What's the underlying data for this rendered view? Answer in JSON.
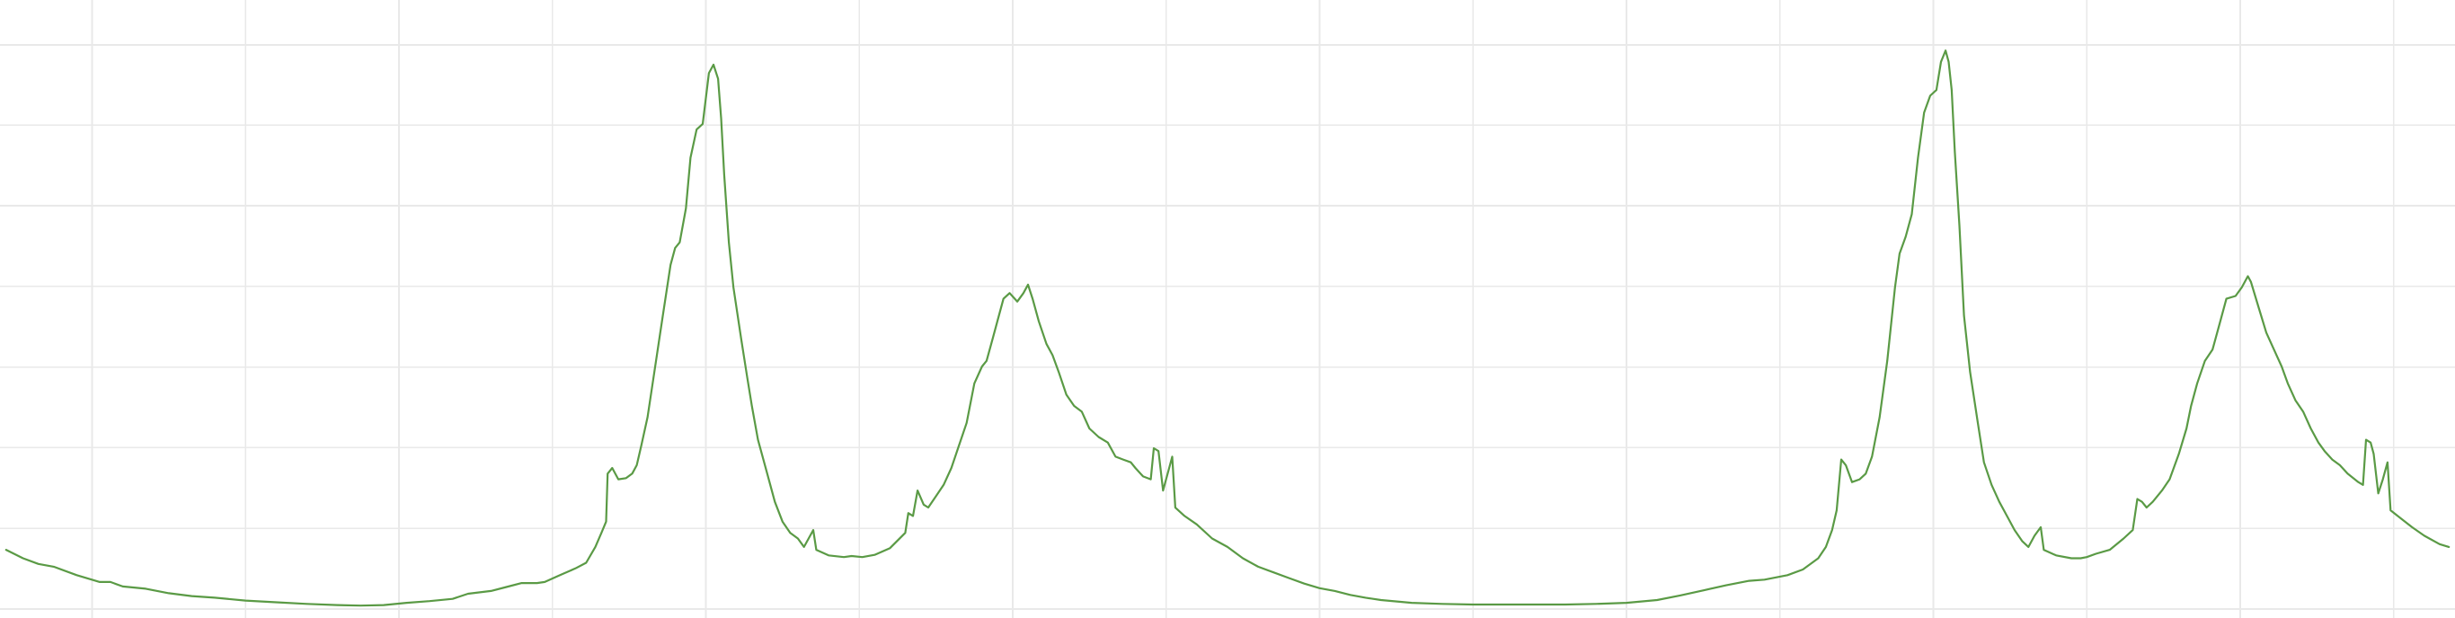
{
  "chart_data": {
    "type": "line",
    "title": "",
    "xlabel": "",
    "ylabel": "",
    "grid": true,
    "legend": "none",
    "xlim": [
      0,
      1600
    ],
    "ylim": [
      0,
      100
    ],
    "x_gridlines": [
      60,
      160,
      260,
      360,
      460,
      560,
      660,
      760,
      860,
      960,
      1060,
      1160,
      1260,
      1360,
      1460,
      1560
    ],
    "y_gridlines": [
      0,
      14.3,
      28.6,
      42.9,
      57.2,
      71.5,
      85.8,
      100
    ],
    "series": [
      {
        "color": "#5a9a45",
        "points": [
          [
            4,
            10.5
          ],
          [
            15,
            9
          ],
          [
            25,
            8
          ],
          [
            35,
            7.5
          ],
          [
            50,
            6
          ],
          [
            65,
            4.8
          ],
          [
            72,
            4.8
          ],
          [
            80,
            4
          ],
          [
            95,
            3.6
          ],
          [
            110,
            2.8
          ],
          [
            125,
            2.3
          ],
          [
            140,
            2
          ],
          [
            160,
            1.5
          ],
          [
            180,
            1.2
          ],
          [
            200,
            0.9
          ],
          [
            220,
            0.7
          ],
          [
            235,
            0.6
          ],
          [
            250,
            0.7
          ],
          [
            265,
            1.1
          ],
          [
            280,
            1.4
          ],
          [
            295,
            1.8
          ],
          [
            305,
            2.7
          ],
          [
            320,
            3.2
          ],
          [
            330,
            3.9
          ],
          [
            340,
            4.6
          ],
          [
            350,
            4.6
          ],
          [
            355,
            4.8
          ],
          [
            365,
            6
          ],
          [
            375,
            7.2
          ],
          [
            382,
            8.2
          ],
          [
            388,
            11
          ],
          [
            392,
            13.5
          ],
          [
            395,
            15.5
          ],
          [
            396,
            24
          ],
          [
            399,
            25
          ],
          [
            403,
            23
          ],
          [
            408,
            23.2
          ],
          [
            412,
            24
          ],
          [
            415,
            25.5
          ],
          [
            418,
            29
          ],
          [
            422,
            34
          ],
          [
            427,
            43
          ],
          [
            432,
            52
          ],
          [
            437,
            61
          ],
          [
            440,
            64
          ],
          [
            443,
            65
          ],
          [
            447,
            71
          ],
          [
            450,
            80
          ],
          [
            454,
            85
          ],
          [
            458,
            86
          ],
          [
            462,
            95
          ],
          [
            465,
            96.5
          ],
          [
            468,
            94
          ],
          [
            470,
            87
          ],
          [
            472,
            77
          ],
          [
            475,
            65
          ],
          [
            478,
            57
          ],
          [
            483,
            48
          ],
          [
            487,
            41
          ],
          [
            490,
            36
          ],
          [
            494,
            30
          ],
          [
            500,
            24
          ],
          [
            505,
            19
          ],
          [
            510,
            15.5
          ],
          [
            515,
            13.5
          ],
          [
            520,
            12.5
          ],
          [
            524,
            11
          ],
          [
            530,
            14
          ],
          [
            532,
            10.5
          ],
          [
            540,
            9.5
          ],
          [
            550,
            9.2
          ],
          [
            555,
            9.4
          ],
          [
            562,
            9.2
          ],
          [
            570,
            9.6
          ],
          [
            580,
            10.8
          ],
          [
            590,
            13.5
          ],
          [
            592,
            17
          ],
          [
            595,
            16.5
          ],
          [
            598,
            21
          ],
          [
            602,
            18.5
          ],
          [
            605,
            18
          ],
          [
            610,
            20
          ],
          [
            615,
            22
          ],
          [
            620,
            25
          ],
          [
            625,
            29
          ],
          [
            630,
            33
          ],
          [
            635,
            40
          ],
          [
            640,
            43
          ],
          [
            643,
            44
          ],
          [
            647,
            48
          ],
          [
            650,
            51
          ],
          [
            654,
            55
          ],
          [
            658,
            56
          ],
          [
            663,
            54.5
          ],
          [
            667,
            56
          ],
          [
            670,
            57.5
          ],
          [
            673,
            55
          ],
          [
            677,
            51
          ],
          [
            682,
            47
          ],
          [
            686,
            45
          ],
          [
            690,
            42
          ],
          [
            695,
            38
          ],
          [
            700,
            36
          ],
          [
            705,
            35
          ],
          [
            710,
            32
          ],
          [
            716,
            30.5
          ],
          [
            722,
            29.5
          ],
          [
            727,
            27
          ],
          [
            732,
            26.5
          ],
          [
            737,
            26
          ],
          [
            740,
            25
          ],
          [
            745,
            23.5
          ],
          [
            750,
            23
          ],
          [
            752,
            28.5
          ],
          [
            755,
            28
          ],
          [
            758,
            21
          ],
          [
            762,
            25
          ],
          [
            764,
            27
          ],
          [
            766,
            18
          ],
          [
            772,
            16.5
          ],
          [
            780,
            15
          ],
          [
            790,
            12.5
          ],
          [
            800,
            11
          ],
          [
            810,
            9
          ],
          [
            820,
            7.5
          ],
          [
            830,
            6.5
          ],
          [
            840,
            5.5
          ],
          [
            850,
            4.5
          ],
          [
            860,
            3.7
          ],
          [
            870,
            3.2
          ],
          [
            880,
            2.5
          ],
          [
            890,
            2
          ],
          [
            900,
            1.6
          ],
          [
            920,
            1.1
          ],
          [
            940,
            0.9
          ],
          [
            960,
            0.8
          ],
          [
            980,
            0.8
          ],
          [
            1000,
            0.8
          ],
          [
            1020,
            0.8
          ],
          [
            1040,
            0.9
          ],
          [
            1060,
            1.1
          ],
          [
            1080,
            1.6
          ],
          [
            1095,
            2.4
          ],
          [
            1110,
            3.3
          ],
          [
            1125,
            4.2
          ],
          [
            1140,
            5
          ],
          [
            1150,
            5.2
          ],
          [
            1165,
            6
          ],
          [
            1175,
            7
          ],
          [
            1185,
            9
          ],
          [
            1190,
            11
          ],
          [
            1194,
            14
          ],
          [
            1197,
            17.5
          ],
          [
            1200,
            26.5
          ],
          [
            1203,
            25.5
          ],
          [
            1207,
            22.5
          ],
          [
            1212,
            23
          ],
          [
            1216,
            24
          ],
          [
            1220,
            27
          ],
          [
            1225,
            34
          ],
          [
            1230,
            44
          ],
          [
            1235,
            57
          ],
          [
            1238,
            63
          ],
          [
            1242,
            66
          ],
          [
            1246,
            70
          ],
          [
            1250,
            80
          ],
          [
            1254,
            88
          ],
          [
            1258,
            91
          ],
          [
            1262,
            92
          ],
          [
            1265,
            97
          ],
          [
            1268,
            99
          ],
          [
            1270,
            97
          ],
          [
            1272,
            92
          ],
          [
            1274,
            81
          ],
          [
            1277,
            68
          ],
          [
            1280,
            52
          ],
          [
            1284,
            42
          ],
          [
            1289,
            33
          ],
          [
            1293,
            26
          ],
          [
            1298,
            22
          ],
          [
            1303,
            19
          ],
          [
            1308,
            16.5
          ],
          [
            1313,
            14
          ],
          [
            1318,
            12
          ],
          [
            1322,
            11
          ],
          [
            1326,
            13
          ],
          [
            1330,
            14.5
          ],
          [
            1332,
            10.5
          ],
          [
            1340,
            9.5
          ],
          [
            1350,
            9
          ],
          [
            1356,
            9
          ],
          [
            1360,
            9.2
          ],
          [
            1366,
            9.8
          ],
          [
            1375,
            10.5
          ],
          [
            1384,
            12.5
          ],
          [
            1390,
            14
          ],
          [
            1393,
            19.5
          ],
          [
            1396,
            19
          ],
          [
            1399,
            18
          ],
          [
            1403,
            19
          ],
          [
            1409,
            21
          ],
          [
            1414,
            23
          ],
          [
            1420,
            27.5
          ],
          [
            1425,
            32
          ],
          [
            1428,
            36
          ],
          [
            1432,
            40
          ],
          [
            1437,
            44
          ],
          [
            1442,
            46
          ],
          [
            1447,
            51
          ],
          [
            1451,
            55
          ],
          [
            1457,
            55.5
          ],
          [
            1461,
            57
          ],
          [
            1465,
            59
          ],
          [
            1467,
            58
          ],
          [
            1472,
            53.5
          ],
          [
            1477,
            49
          ],
          [
            1482,
            46
          ],
          [
            1487,
            43
          ],
          [
            1491,
            40
          ],
          [
            1496,
            37
          ],
          [
            1501,
            35
          ],
          [
            1506,
            32
          ],
          [
            1511,
            29.5
          ],
          [
            1515,
            28
          ],
          [
            1520,
            26.5
          ],
          [
            1525,
            25.5
          ],
          [
            1530,
            24
          ],
          [
            1537,
            22.5
          ],
          [
            1540,
            22
          ],
          [
            1542,
            30
          ],
          [
            1545,
            29.5
          ],
          [
            1547,
            27.5
          ],
          [
            1550,
            20.5
          ],
          [
            1553,
            23
          ],
          [
            1556,
            26
          ],
          [
            1558,
            17.5
          ],
          [
            1565,
            16
          ],
          [
            1572,
            14.5
          ],
          [
            1580,
            13
          ],
          [
            1590,
            11.5
          ],
          [
            1596,
            11
          ]
        ]
      }
    ]
  }
}
